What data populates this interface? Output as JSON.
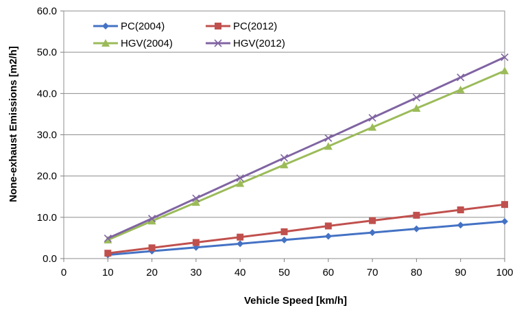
{
  "chart_data": {
    "type": "line",
    "title": "",
    "xlabel": "Vehicle Speed [km/h]",
    "ylabel": "None-exhaust Emissions [m2/h]",
    "xlim": [
      0,
      100
    ],
    "ylim": [
      0,
      60
    ],
    "x_ticks": [
      "0",
      "10",
      "20",
      "30",
      "40",
      "50",
      "60",
      "70",
      "80",
      "90",
      "100"
    ],
    "y_ticks": [
      "0.0",
      "10.0",
      "20.0",
      "30.0",
      "40.0",
      "50.0",
      "60.0"
    ],
    "grid": "horizontal",
    "legend_position": "top-left",
    "x": [
      10,
      20,
      30,
      40,
      50,
      60,
      70,
      80,
      90,
      100
    ],
    "series": [
      {
        "name": "PC(2004)",
        "color": "#4472C4",
        "marker": "diamond",
        "values": [
          0.9,
          1.8,
          2.7,
          3.6,
          4.5,
          5.4,
          6.3,
          7.2,
          8.1,
          9.0
        ]
      },
      {
        "name": "PC(2012)",
        "color": "#C0504D",
        "marker": "square",
        "values": [
          1.3,
          2.6,
          3.9,
          5.2,
          6.5,
          7.9,
          9.2,
          10.5,
          11.8,
          13.1
        ]
      },
      {
        "name": "HGV(2004)",
        "color": "#9BBB59",
        "marker": "triangle",
        "values": [
          4.5,
          9.1,
          13.6,
          18.2,
          22.7,
          27.2,
          31.8,
          36.4,
          40.9,
          45.5
        ]
      },
      {
        "name": "HGV(2012)",
        "color": "#8064A2",
        "marker": "x",
        "values": [
          4.9,
          9.7,
          14.6,
          19.5,
          24.4,
          29.2,
          34.1,
          39.0,
          43.9,
          48.8
        ]
      }
    ]
  }
}
